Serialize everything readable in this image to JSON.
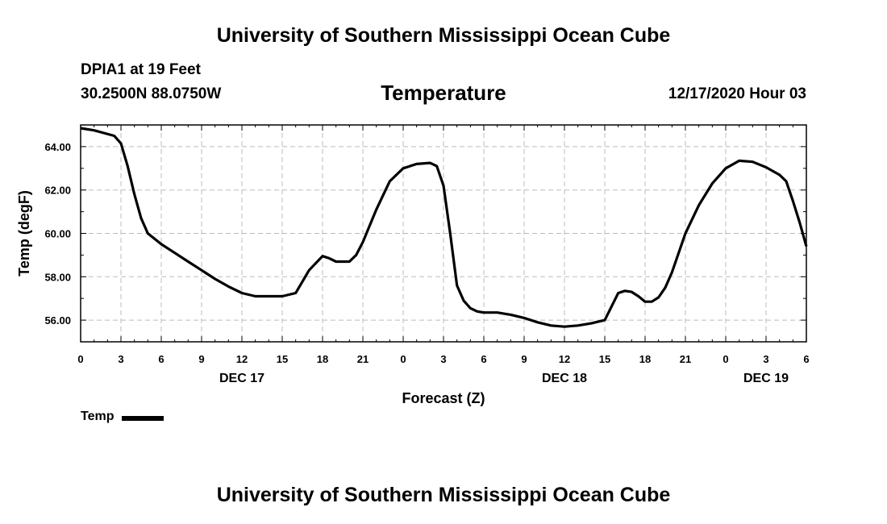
{
  "page": {
    "top_title": "University of Southern Mississippi Ocean Cube",
    "bottom_title": "University of Southern Mississippi Ocean Cube",
    "station": "DPIA1 at 19 Feet",
    "coords": "30.2500N 88.0750W",
    "datetime": "12/17/2020 Hour 03"
  },
  "colors": {
    "line": "#000000",
    "grid": "#bbbbbb",
    "background": "#ffffff"
  },
  "chart_data": {
    "type": "line",
    "title": "Temperature",
    "xlabel": "Forecast (Z)",
    "ylabel": "Temp (degF)",
    "xlim": [
      0,
      54
    ],
    "ylim": [
      55,
      65
    ],
    "grid": true,
    "yticks": [
      56,
      58,
      60,
      62,
      64
    ],
    "ytick_labels": [
      "56.00",
      "58.00",
      "60.00",
      "62.00",
      "64.00"
    ],
    "xticks": [
      0,
      3,
      6,
      9,
      12,
      15,
      18,
      21,
      24,
      27,
      30,
      33,
      36,
      39,
      42,
      45,
      48,
      51,
      54
    ],
    "xtick_labels": [
      "0",
      "3",
      "6",
      "9",
      "12",
      "15",
      "18",
      "21",
      "0",
      "3",
      "6",
      "9",
      "12",
      "15",
      "18",
      "21",
      "0",
      "3",
      "6"
    ],
    "day_labels": [
      {
        "x": 12,
        "label": "DEC 17"
      },
      {
        "x": 36,
        "label": "DEC 18"
      },
      {
        "x": 51,
        "label": "DEC 19"
      }
    ],
    "legend": {
      "label": "Temp",
      "position": "bottom-left"
    },
    "series": [
      {
        "name": "Temp",
        "x": [
          0,
          1,
          2.5,
          3,
          3.5,
          4,
          4.5,
          5,
          6,
          7,
          8,
          9,
          10,
          11,
          12,
          13,
          14,
          15,
          16,
          17,
          18,
          18.5,
          19,
          20,
          20.5,
          21,
          22,
          23,
          24,
          25,
          26,
          26.5,
          27,
          27.5,
          28,
          28.5,
          29,
          29.5,
          30,
          31,
          32,
          33,
          34,
          35,
          36,
          37,
          38,
          39,
          40,
          40.5,
          41,
          41.5,
          42,
          42.5,
          43,
          43.5,
          44,
          45,
          46,
          47,
          48,
          49,
          50,
          51,
          52,
          52.5,
          53,
          53.5,
          54
        ],
        "values": [
          64.85,
          64.75,
          64.5,
          64.15,
          63.1,
          61.8,
          60.7,
          60.0,
          59.5,
          59.1,
          58.7,
          58.3,
          57.9,
          57.55,
          57.25,
          57.1,
          57.1,
          57.1,
          57.25,
          58.3,
          58.95,
          58.85,
          58.7,
          58.7,
          59.0,
          59.6,
          61.1,
          62.4,
          63.0,
          63.2,
          63.25,
          63.1,
          62.2,
          60.0,
          57.6,
          56.9,
          56.55,
          56.4,
          56.35,
          56.35,
          56.25,
          56.1,
          55.9,
          55.75,
          55.7,
          55.75,
          55.85,
          56.0,
          57.25,
          57.35,
          57.3,
          57.1,
          56.85,
          56.85,
          57.05,
          57.5,
          58.2,
          60.0,
          61.3,
          62.3,
          63.0,
          63.35,
          63.3,
          63.05,
          62.7,
          62.4,
          61.5,
          60.5,
          59.4
        ]
      }
    ]
  }
}
